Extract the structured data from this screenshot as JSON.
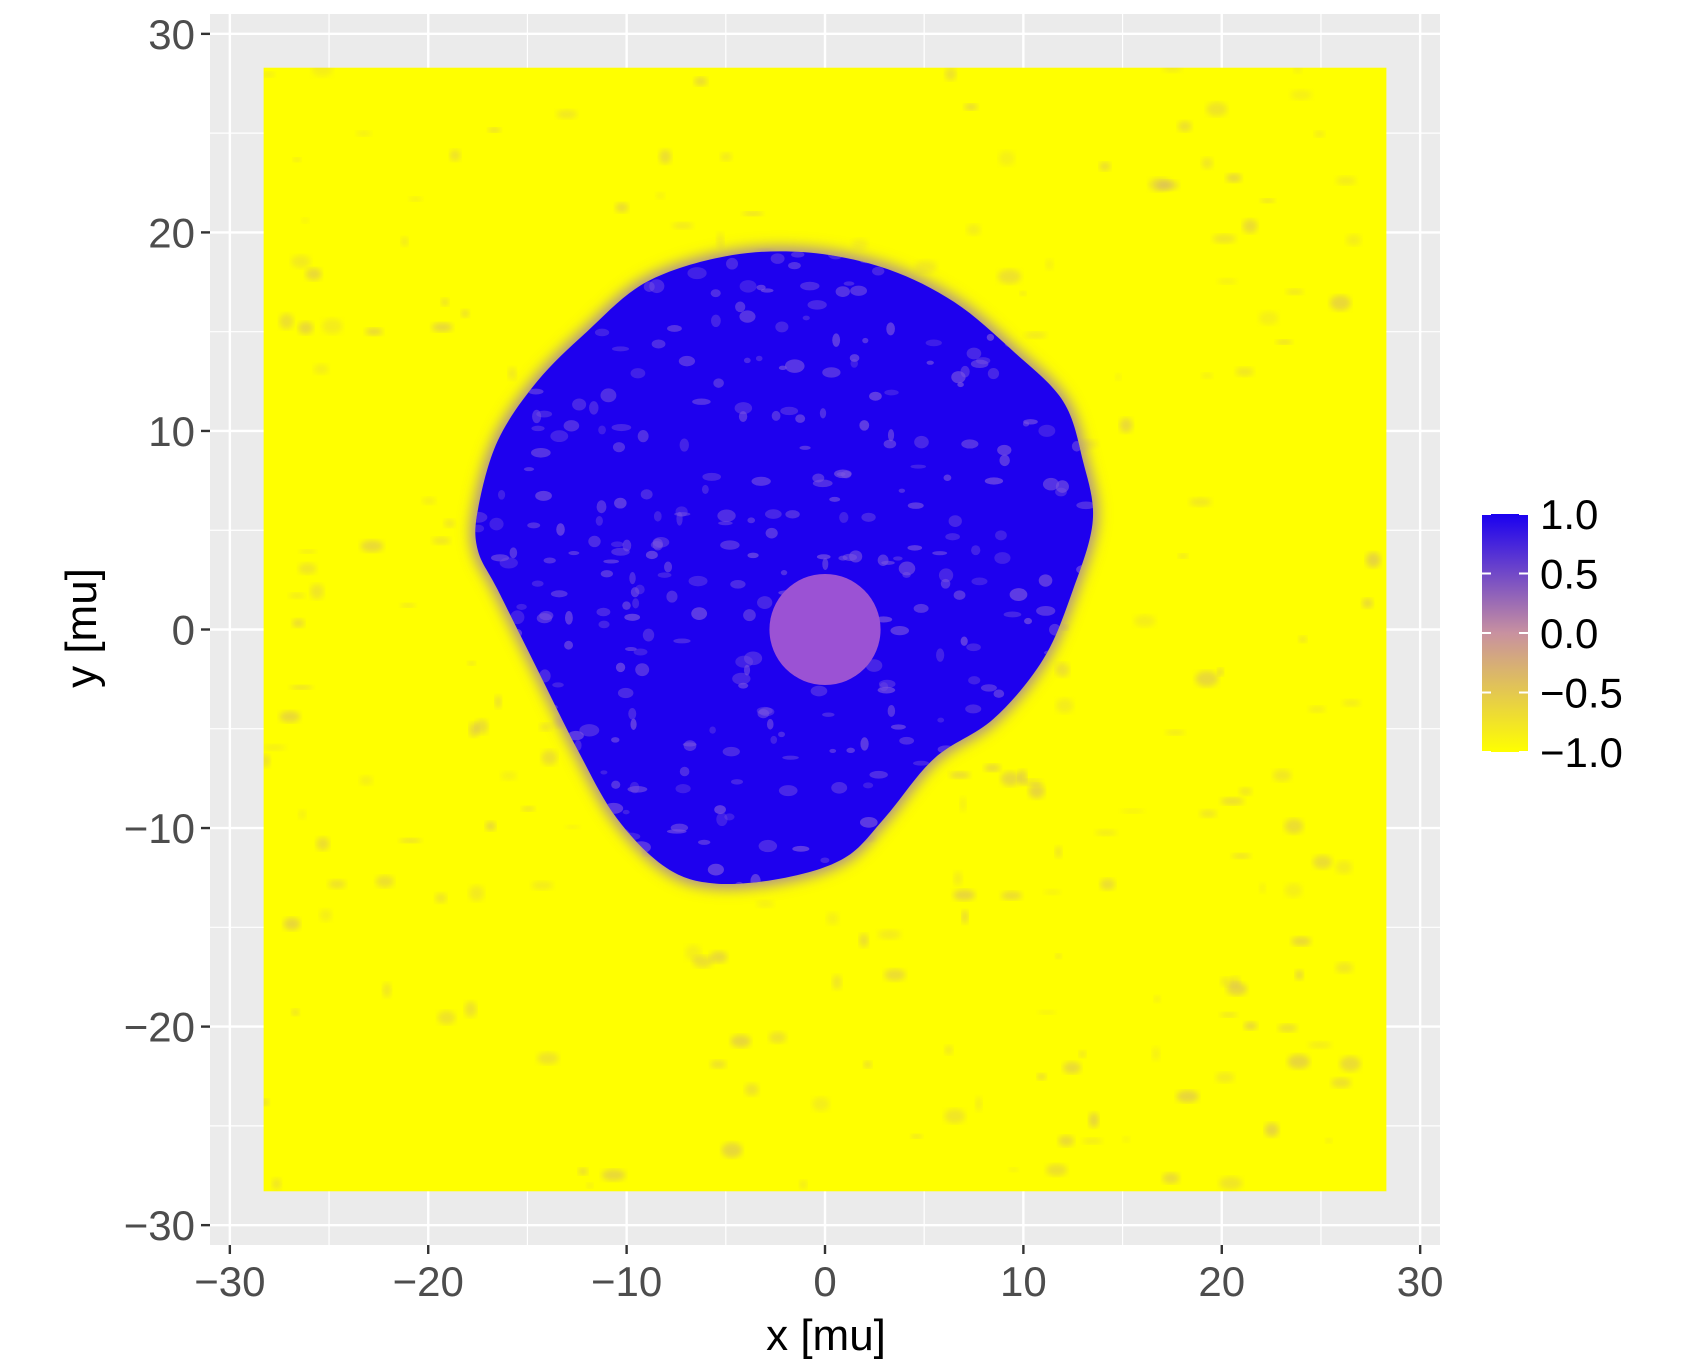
{
  "chart_data": {
    "type": "heatmap",
    "title": "",
    "xlabel": "x [mu]",
    "ylabel": "y [mu]",
    "xlim": [
      -31,
      31
    ],
    "ylim": [
      -31,
      31
    ],
    "x_ticks": [
      -30,
      -20,
      -10,
      0,
      10,
      20,
      30
    ],
    "y_ticks": [
      -30,
      -20,
      -10,
      0,
      10,
      20,
      30
    ],
    "x_tick_labels": [
      "−30",
      "−20",
      "−10",
      "0",
      "10",
      "20",
      "30"
    ],
    "y_tick_labels": [
      "−30",
      "−20",
      "−10",
      "0",
      "10",
      "20",
      "30"
    ],
    "field_extent": {
      "x": [
        -28.3,
        28.3
      ],
      "y": [
        -28.3,
        28.3
      ]
    },
    "grid": true,
    "background_value": -1.0,
    "blob": {
      "value": 1.0,
      "boundary": [
        [
          -17.5,
          6
        ],
        [
          -16.5,
          9.5
        ],
        [
          -14.5,
          12.5
        ],
        [
          -12,
          15
        ],
        [
          -9,
          17.5
        ],
        [
          -5,
          18.8
        ],
        [
          -1,
          19
        ],
        [
          3,
          18.2
        ],
        [
          6.5,
          16.5
        ],
        [
          9.5,
          14
        ],
        [
          12,
          11.5
        ],
        [
          13,
          8.5
        ],
        [
          13.5,
          5.5
        ],
        [
          12.5,
          2
        ],
        [
          11,
          -1.5
        ],
        [
          8.5,
          -4.5
        ],
        [
          5.5,
          -6.5
        ],
        [
          3,
          -9.5
        ],
        [
          1,
          -11.5
        ],
        [
          -2,
          -12.5
        ],
        [
          -5.5,
          -12.8
        ],
        [
          -8,
          -12
        ],
        [
          -10.5,
          -9.5
        ],
        [
          -12.5,
          -6
        ],
        [
          -14.5,
          -2
        ],
        [
          -16.5,
          2
        ],
        [
          -17.5,
          4
        ]
      ]
    },
    "inner_disk": {
      "center": [
        0,
        0
      ],
      "radius": 2.8,
      "value": 0.3
    },
    "colorbar": {
      "min": -1.0,
      "max": 1.0,
      "ticks": [
        1.0,
        0.5,
        0.0,
        -0.5,
        -1.0
      ],
      "tick_labels": [
        "1.0",
        "0.5",
        "0.0",
        "−0.5",
        "−1.0"
      ],
      "low_color": "#ffff00",
      "mid_color": "#c891a0",
      "high_color": "#1a00f0",
      "placement": "right"
    },
    "colors": {
      "panel_background": "#ebebeb",
      "grid_line": "#ffffff",
      "field_low": "#ffff00",
      "blob": "#1e00ee",
      "inner_disk": "#9b52d4"
    }
  }
}
